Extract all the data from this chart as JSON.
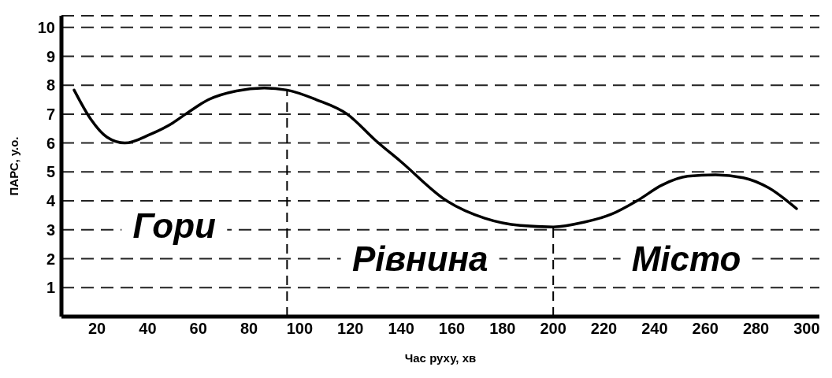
{
  "chart_data": {
    "type": "line",
    "xlabel": "Час руху, хв",
    "ylabel": "ПАРС, у.о.",
    "xlim": [
      6,
      305
    ],
    "xticks": [
      20,
      40,
      60,
      80,
      100,
      120,
      140,
      160,
      180,
      200,
      220,
      240,
      260,
      280,
      300
    ],
    "ylim": [
      0,
      10.4
    ],
    "yticks": [
      1,
      2,
      3,
      4,
      5,
      6,
      7,
      8,
      9,
      10
    ],
    "grid": "y",
    "marker": "none",
    "line_style": "solid",
    "series": [
      {
        "color": "#000000",
        "x": [
          11,
          17.6,
          24,
          31,
          41,
          50,
          55,
          64,
          75,
          86,
          95,
          106.5,
          118.7,
          129.8,
          140,
          158,
          173,
          187,
          200,
          212,
          223,
          233,
          243,
          253,
          264,
          275,
          285,
          296
        ],
        "values": [
          7.83,
          6.82,
          6.2,
          6.0,
          6.3,
          6.7,
          7.0,
          7.5,
          7.8,
          7.9,
          7.83,
          7.5,
          7.0,
          6.1,
          5.35,
          4.0,
          3.4,
          3.15,
          3.1,
          3.26,
          3.54,
          4.0,
          4.55,
          4.85,
          4.9,
          4.8,
          4.45,
          3.73
        ]
      }
    ],
    "ref_lines": [
      {
        "axis": "x",
        "value": 95,
        "line_style": "dashed",
        "color": "#000000"
      },
      {
        "axis": "x",
        "value": 200,
        "line_style": "dashed",
        "color": "#000000"
      }
    ],
    "annotations": [
      "Гори",
      "Рівнина",
      "Місто"
    ]
  }
}
